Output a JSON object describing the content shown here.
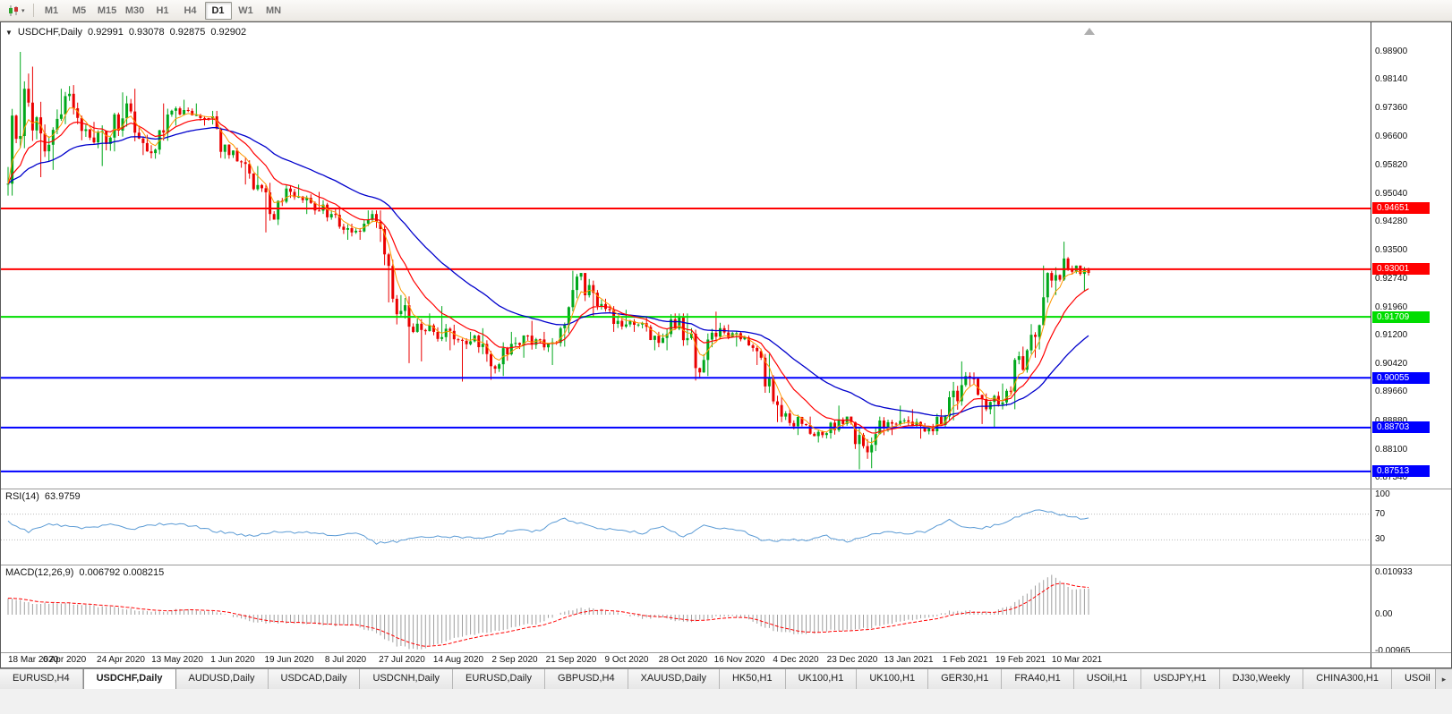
{
  "icons": {
    "header_marker": "▼",
    "dropdown_caret": "▾",
    "tabs_scroll_right": "▸"
  },
  "colors": {
    "bull": "#00A81C",
    "bear": "#EA0000",
    "ma_fast": "#FF9900",
    "ma_mid": "#FF0000",
    "ma_slow": "#0000CC",
    "rsi_line": "#5B9BD5",
    "rsi_level": "#BBBBBB",
    "macd_hist": "#9E9E9E",
    "macd_signal": "#FF0000",
    "shift_marker": "#AFAFAF"
  },
  "toolbar": {
    "timeframes": [
      {
        "label": "M1",
        "active": false
      },
      {
        "label": "M5",
        "active": false
      },
      {
        "label": "M15",
        "active": false
      },
      {
        "label": "M30",
        "active": false
      },
      {
        "label": "H1",
        "active": false
      },
      {
        "label": "H4",
        "active": false
      },
      {
        "label": "D1",
        "active": true
      },
      {
        "label": "W1",
        "active": false
      },
      {
        "label": "MN",
        "active": false
      }
    ]
  },
  "tab_bar": {
    "tabs": [
      {
        "label": "EURUSD,H4",
        "active": false
      },
      {
        "label": "USDCHF,Daily",
        "active": true
      },
      {
        "label": "AUDUSD,Daily",
        "active": false
      },
      {
        "label": "USDCAD,Daily",
        "active": false
      },
      {
        "label": "USDCNH,Daily",
        "active": false
      },
      {
        "label": "EURUSD,Daily",
        "active": false
      },
      {
        "label": "GBPUSD,H4",
        "active": false
      },
      {
        "label": "XAUUSD,Daily",
        "active": false
      },
      {
        "label": "HK50,H1",
        "active": false
      },
      {
        "label": "UK100,H1",
        "active": false
      },
      {
        "label": "UK100,H1",
        "active": false
      },
      {
        "label": "GER30,H1",
        "active": false
      },
      {
        "label": "FRA40,H1",
        "active": false
      },
      {
        "label": "USOil,H1",
        "active": false
      },
      {
        "label": "USDJPY,H1",
        "active": false
      },
      {
        "label": "DJ30,Weekly",
        "active": false
      },
      {
        "label": "CHINA300,H1",
        "active": false
      },
      {
        "label": "USOil",
        "active": false
      }
    ]
  },
  "chart_data": [
    {
      "type": "candlestick",
      "title": "USDCHF,Daily",
      "ohlc_display": {
        "open": "0.92991",
        "high": "0.93078",
        "low": "0.92875",
        "close": "0.92902"
      },
      "x_tick_labels": [
        "18 Mar 2020",
        "6 Apr 2020",
        "24 Apr 2020",
        "13 May 2020",
        "1 Jun 2020",
        "19 Jun 2020",
        "8 Jul 2020",
        "27 Jul 2020",
        "14 Aug 2020",
        "2 Sep 2020",
        "21 Sep 2020",
        "9 Oct 2020",
        "28 Oct 2020",
        "16 Nov 2020",
        "4 Dec 2020",
        "23 Dec 2020",
        "13 Jan 2021",
        "1 Feb 2021",
        "19 Feb 2021",
        "10 Mar 2021"
      ],
      "y_tick_labels": [
        "0.98900",
        "0.98140",
        "0.97360",
        "0.96600",
        "0.95820",
        "0.95040",
        "0.94280",
        "0.93500",
        "0.92740",
        "0.91960",
        "0.91200",
        "0.90420",
        "0.89660",
        "0.88880",
        "0.88100",
        "0.87340"
      ],
      "ylim": [
        0.871,
        0.9935
      ],
      "horizontal_lines": [
        {
          "price": 0.94651,
          "label": "0.94651",
          "color": "#FF0000",
          "width": 2
        },
        {
          "price": 0.93001,
          "label": "0.93001",
          "color": "#FF0000",
          "width": 2
        },
        {
          "price": 0.91709,
          "label": "0.91709",
          "color": "#00DD00",
          "width": 2
        },
        {
          "price": 0.90055,
          "label": "0.90055",
          "color": "#0000FF",
          "width": 2
        },
        {
          "price": 0.88703,
          "label": "0.88703",
          "color": "#0000FF",
          "width": 2
        },
        {
          "price": 0.87513,
          "label": "0.87513",
          "color": "#0000FF",
          "width": 2
        }
      ],
      "weekly_ohlc": [
        [
          0.953,
          0.989,
          0.95,
          0.979
        ],
        [
          0.979,
          0.985,
          0.955,
          0.962
        ],
        [
          0.962,
          0.979,
          0.957,
          0.977
        ],
        [
          0.977,
          0.98,
          0.965,
          0.968
        ],
        [
          0.968,
          0.97,
          0.958,
          0.964
        ],
        [
          0.964,
          0.978,
          0.962,
          0.975
        ],
        [
          0.975,
          0.979,
          0.961,
          0.962
        ],
        [
          0.962,
          0.975,
          0.96,
          0.972
        ],
        [
          0.972,
          0.976,
          0.969,
          0.973
        ],
        [
          0.973,
          0.975,
          0.969,
          0.971
        ],
        [
          0.971,
          0.973,
          0.96,
          0.961
        ],
        [
          0.961,
          0.963,
          0.953,
          0.956
        ],
        [
          0.956,
          0.958,
          0.94,
          0.945
        ],
        [
          0.945,
          0.953,
          0.942,
          0.951
        ],
        [
          0.951,
          0.953,
          0.945,
          0.948
        ],
        [
          0.948,
          0.951,
          0.943,
          0.945
        ],
        [
          0.945,
          0.947,
          0.938,
          0.94
        ],
        [
          0.94,
          0.946,
          0.938,
          0.945
        ],
        [
          0.945,
          0.946,
          0.921,
          0.922
        ],
        [
          0.922,
          0.923,
          0.9045,
          0.913
        ],
        [
          0.913,
          0.918,
          0.905,
          0.913
        ],
        [
          0.913,
          0.92,
          0.908,
          0.911
        ],
        [
          0.911,
          0.913,
          0.8995,
          0.912
        ],
        [
          0.912,
          0.914,
          0.9,
          0.903
        ],
        [
          0.903,
          0.913,
          0.901,
          0.91
        ],
        [
          0.91,
          0.916,
          0.906,
          0.911
        ],
        [
          0.911,
          0.913,
          0.904,
          0.91
        ],
        [
          0.91,
          0.9296,
          0.909,
          0.928
        ],
        [
          0.928,
          0.929,
          0.917,
          0.92
        ],
        [
          0.92,
          0.922,
          0.913,
          0.916
        ],
        [
          0.916,
          0.919,
          0.913,
          0.915
        ],
        [
          0.915,
          0.917,
          0.908,
          0.91
        ],
        [
          0.91,
          0.918,
          0.908,
          0.917
        ],
        [
          0.917,
          0.918,
          0.8998,
          0.902
        ],
        [
          0.902,
          0.9185,
          0.901,
          0.914
        ],
        [
          0.914,
          0.915,
          0.909,
          0.911
        ],
        [
          0.911,
          0.912,
          0.904,
          0.906
        ],
        [
          0.906,
          0.907,
          0.8885,
          0.89
        ],
        [
          0.89,
          0.892,
          0.885,
          0.888
        ],
        [
          0.888,
          0.89,
          0.883,
          0.885
        ],
        [
          0.885,
          0.893,
          0.884,
          0.888
        ],
        [
          0.888,
          0.89,
          0.8757,
          0.882
        ],
        [
          0.882,
          0.89,
          0.876,
          0.887
        ],
        [
          0.887,
          0.893,
          0.885,
          0.889
        ],
        [
          0.889,
          0.892,
          0.884,
          0.886
        ],
        [
          0.886,
          0.892,
          0.885,
          0.89
        ],
        [
          0.89,
          0.905,
          0.889,
          0.901
        ],
        [
          0.901,
          0.902,
          0.888,
          0.892
        ],
        [
          0.892,
          0.899,
          0.887,
          0.897
        ],
        [
          0.897,
          0.909,
          0.892,
          0.908
        ],
        [
          0.908,
          0.931,
          0.906,
          0.929
        ],
        [
          0.929,
          0.9375,
          0.923,
          0.93
        ],
        [
          0.93,
          0.931,
          0.924,
          0.929
        ]
      ]
    },
    {
      "type": "line",
      "title": "RSI(14)",
      "value_text": "63.9759",
      "current_value": 63.9759,
      "levels": [
        100,
        70,
        30
      ],
      "weekly_values": [
        58,
        42,
        55,
        50,
        48,
        54,
        45,
        53,
        56,
        52,
        44,
        40,
        36,
        44,
        42,
        40,
        36,
        42,
        25,
        28,
        35,
        36,
        34,
        32,
        40,
        45,
        43,
        64,
        55,
        47,
        46,
        40,
        52,
        35,
        52,
        47,
        42,
        28,
        30,
        29,
        36,
        27,
        37,
        43,
        40,
        44,
        60,
        47,
        50,
        62,
        75,
        74,
        64
      ]
    },
    {
      "type": "bar",
      "title": "MACD(12,26,9)",
      "values_text": "0.006792 0.008215",
      "macd_value": 0.006792,
      "signal_value": 0.008215,
      "y_tick_labels": [
        "0.010933",
        "0.00",
        "-0.00965"
      ],
      "ylim": [
        -0.00965,
        0.010933
      ],
      "weekly_macd": [
        0.0045,
        0.003,
        0.0028,
        0.003,
        0.0022,
        0.002,
        0.0015,
        0.0008,
        0.0012,
        0.0015,
        0.0008,
        -0.0005,
        -0.0018,
        -0.0022,
        -0.002,
        -0.0025,
        -0.003,
        -0.0028,
        -0.0048,
        -0.008,
        -0.0093,
        -0.0075,
        -0.006,
        -0.005,
        -0.0042,
        -0.0028,
        -0.0022,
        0.0005,
        0.0018,
        0.0012,
        0.0002,
        -0.001,
        -0.0008,
        -0.002,
        -0.0012,
        -0.0002,
        -0.0008,
        -0.0035,
        -0.0048,
        -0.005,
        -0.0042,
        -0.004,
        -0.0035,
        -0.0022,
        -0.0015,
        -0.001,
        0.0008,
        0.001,
        0.0005,
        0.0022,
        0.0065,
        0.0105,
        0.0068
      ]
    }
  ]
}
